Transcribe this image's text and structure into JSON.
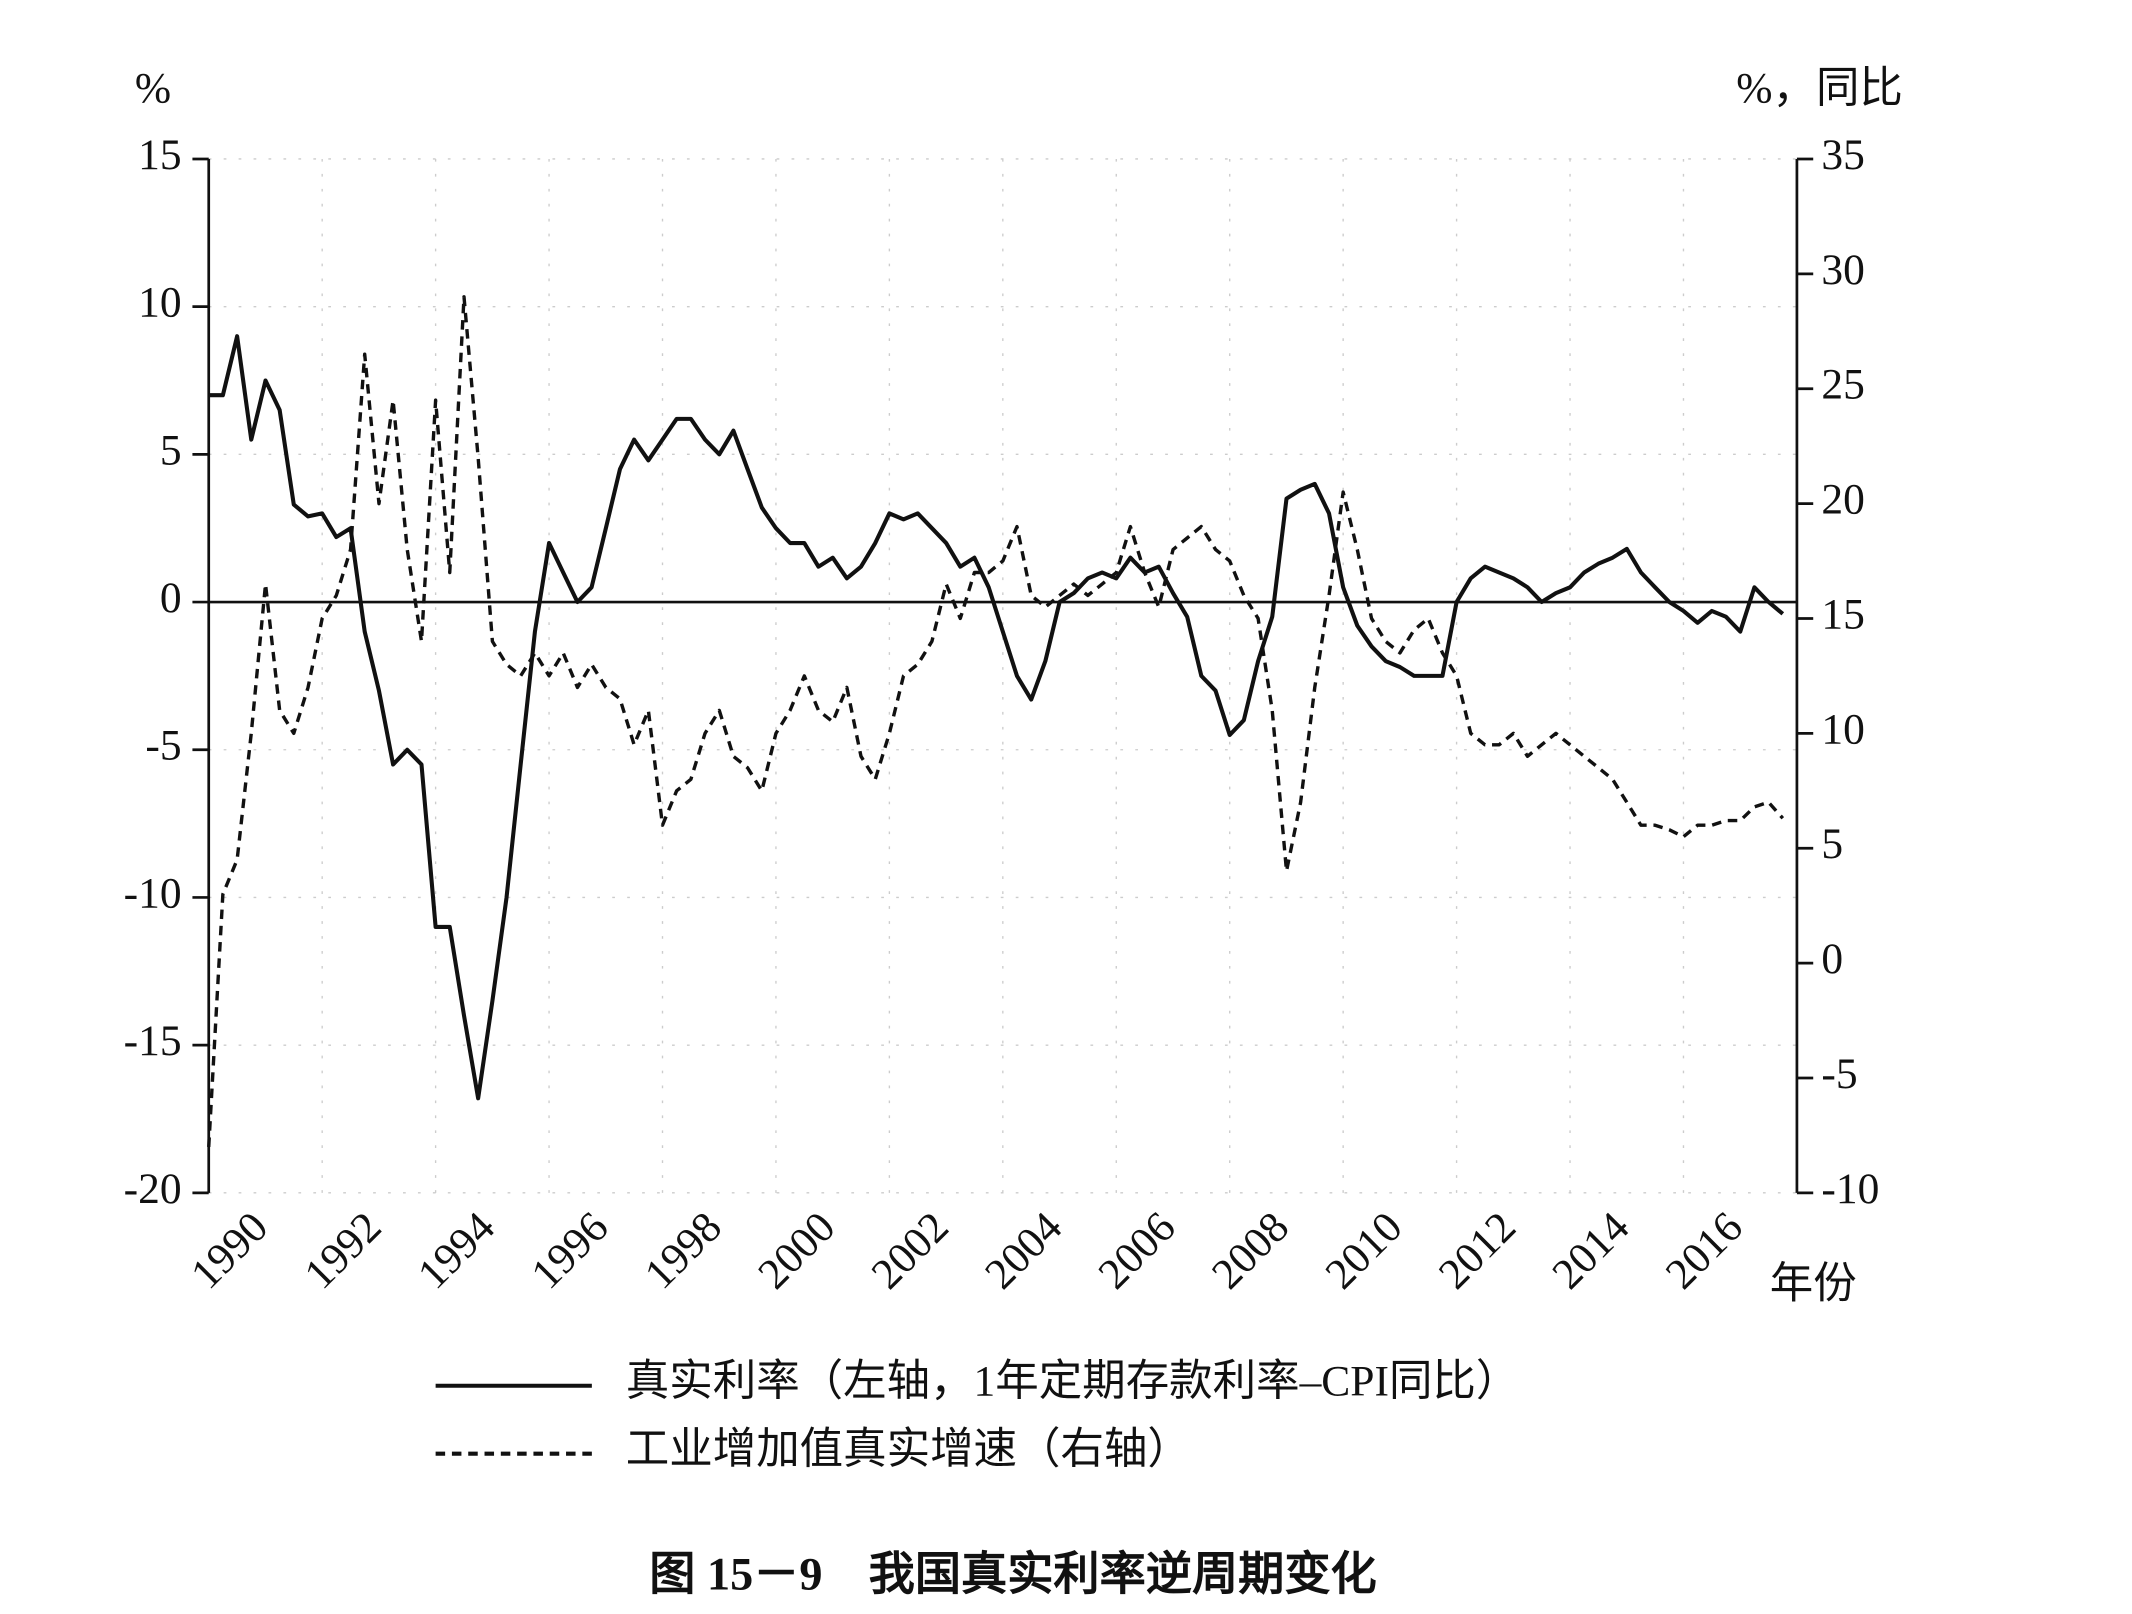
{
  "chart_data": {
    "type": "line",
    "title": "图 15－9　我国真实利率逆周期变化",
    "y_label": "%",
    "y2_label": "%，同比",
    "x_label": "年份",
    "x": [
      1990,
      1990.25,
      1990.5,
      1990.75,
      1991,
      1991.25,
      1991.5,
      1991.75,
      1992,
      1992.25,
      1992.5,
      1992.75,
      1993,
      1993.25,
      1993.5,
      1993.75,
      1994,
      1994.25,
      1994.5,
      1994.75,
      1995,
      1995.25,
      1995.5,
      1995.75,
      1996,
      1996.25,
      1996.5,
      1996.75,
      1997,
      1997.25,
      1997.5,
      1997.75,
      1998,
      1998.25,
      1998.5,
      1998.75,
      1999,
      1999.25,
      1999.5,
      1999.75,
      2000,
      2000.25,
      2000.5,
      2000.75,
      2001,
      2001.25,
      2001.5,
      2001.75,
      2002,
      2002.25,
      2002.5,
      2002.75,
      2003,
      2003.25,
      2003.5,
      2003.75,
      2004,
      2004.25,
      2004.5,
      2004.75,
      2005,
      2005.25,
      2005.5,
      2005.75,
      2006,
      2006.25,
      2006.5,
      2006.75,
      2007,
      2007.25,
      2007.5,
      2007.75,
      2008,
      2008.25,
      2008.5,
      2008.75,
      2009,
      2009.25,
      2009.5,
      2009.75,
      2010,
      2010.25,
      2010.5,
      2010.75,
      2011,
      2011.25,
      2011.5,
      2011.75,
      2012,
      2012.25,
      2012.5,
      2012.75,
      2013,
      2013.25,
      2013.5,
      2013.75,
      2014,
      2014.25,
      2014.5,
      2014.75,
      2015,
      2015.25,
      2015.5,
      2015.75,
      2016,
      2016.25,
      2016.5,
      2016.75,
      2017,
      2017.25,
      2017.5,
      2017.75
    ],
    "xlim": [
      1990,
      2018
    ],
    "xticks": [
      1990,
      1992,
      1994,
      1996,
      1998,
      2000,
      2002,
      2004,
      2006,
      2008,
      2010,
      2012,
      2014,
      2016
    ],
    "ylim": [
      -20,
      15
    ],
    "yticks": [
      -20,
      -15,
      -10,
      -5,
      0,
      5,
      10,
      15
    ],
    "y2lim": [
      -10,
      35
    ],
    "y2ticks": [
      -10,
      -5,
      0,
      5,
      10,
      15,
      20,
      25,
      30,
      35
    ],
    "grid": true,
    "zero_line": true,
    "legend": "bottom",
    "series": [
      {
        "name": "真实利率（左轴，1年定期存款利率–CPI同比）",
        "color": "#111111",
        "dash": "solid",
        "values": [
          7,
          7,
          9,
          5.5,
          7.5,
          6.5,
          3.3,
          2.9,
          3,
          2.2,
          2.5,
          -1,
          -3,
          -5.5,
          -5,
          -5.5,
          -11,
          -11,
          -14,
          -16.8,
          -13.5,
          -10,
          -5.5,
          -1,
          2,
          1,
          0,
          0.5,
          2.5,
          4.5,
          5.5,
          4.8,
          5.5,
          6.2,
          6.2,
          5.5,
          5,
          5.8,
          4.5,
          3.2,
          2.5,
          2,
          2,
          1.2,
          1.5,
          0.8,
          1.2,
          2,
          3,
          2.8,
          3,
          2.5,
          2,
          1.2,
          1.5,
          0.5,
          -1,
          -2.5,
          -3.3,
          -2,
          0,
          0.3,
          0.8,
          1,
          0.8,
          1.5,
          1,
          1.2,
          0.3,
          -0.5,
          -2.5,
          -3,
          -4.5,
          -4,
          -2,
          -0.5,
          3.5,
          3.8,
          4,
          3,
          0.5,
          -0.8,
          -1.5,
          -2,
          -2.2,
          -2.5,
          -2.5,
          -2.5,
          0,
          0.8,
          1.2,
          1,
          0.8,
          0.5,
          0,
          0.3,
          0.5,
          1,
          1.3,
          1.5,
          1.8,
          1,
          0.5,
          0,
          -0.3,
          -0.7,
          -0.3,
          -0.5,
          -1,
          0.5,
          0,
          -0.4
        ]
      },
      {
        "name": "工业增加值真实增速（右轴）",
        "color": "#111111",
        "dash": "dashed",
        "axis": "y2",
        "values": [
          -8,
          3,
          4.5,
          10,
          16.5,
          11,
          10,
          12,
          15,
          16,
          18,
          26.5,
          20,
          24.5,
          18,
          14,
          24.5,
          17,
          29,
          22,
          14,
          13,
          12.5,
          13.5,
          12.5,
          13.5,
          12,
          13,
          12,
          11.5,
          9.5,
          11,
          6,
          7.5,
          8,
          10,
          11,
          9,
          8.5,
          7.5,
          10,
          11,
          12.5,
          11,
          10.5,
          12,
          9,
          8,
          10,
          12.5,
          13,
          14,
          16.5,
          15,
          17,
          17,
          17.5,
          19,
          16,
          15.5,
          16,
          16.5,
          16,
          16.5,
          17,
          19,
          17,
          15.5,
          18,
          18.5,
          19,
          18,
          17.5,
          16,
          15,
          11,
          4,
          7,
          12,
          16,
          20.5,
          18,
          15,
          14,
          13.5,
          14.5,
          15,
          13.5,
          12.5,
          10,
          9.5,
          9.5,
          10,
          9,
          9.5,
          10,
          9.5,
          9,
          8.5,
          8,
          7,
          6,
          6,
          5.8,
          5.5,
          6,
          6,
          6.2,
          6.2,
          6.8,
          7,
          6.3
        ]
      }
    ]
  }
}
